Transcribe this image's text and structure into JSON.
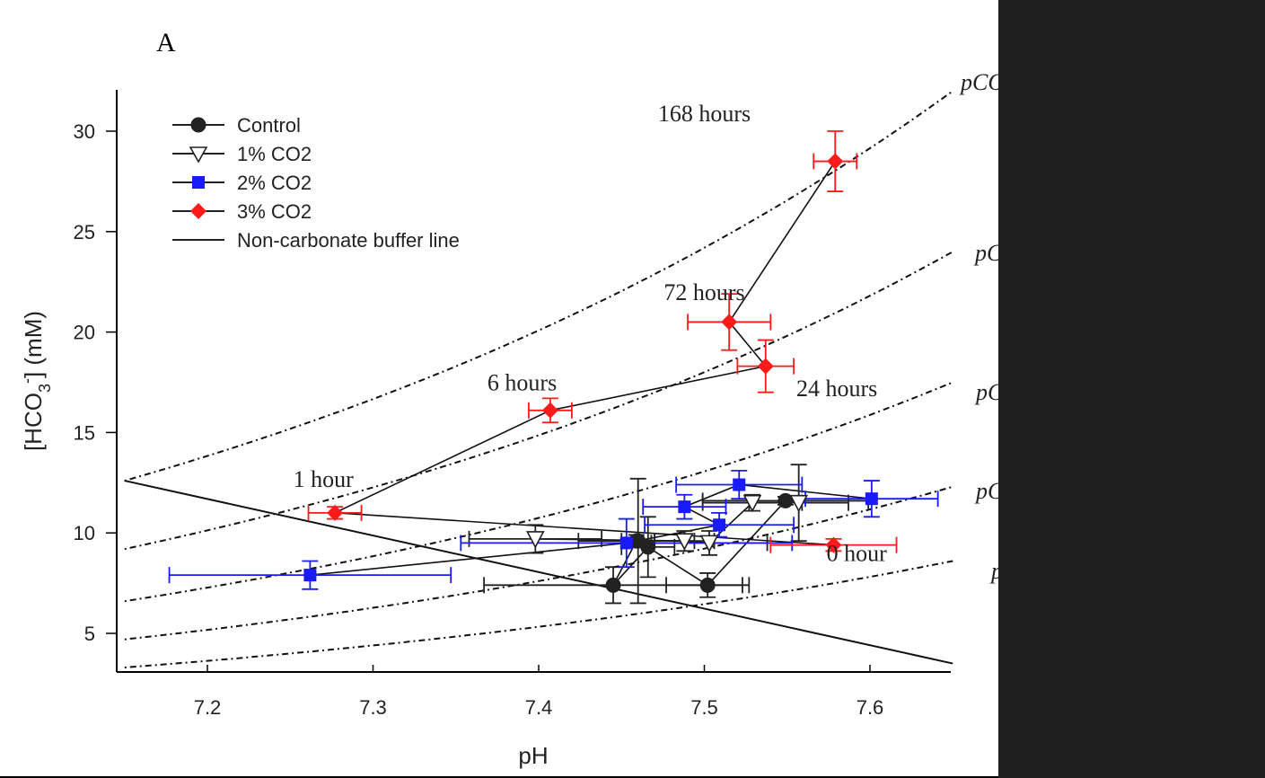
{
  "chart_data": {
    "type": "scatter",
    "panel_label": "A",
    "title": "",
    "xlabel": "pH",
    "ylabel": "[HCO3-] (mM)",
    "xlim": [
      7.15,
      7.65
    ],
    "ylim": [
      3,
      32
    ],
    "x_ticks": [
      "7.2",
      "7.3",
      "7.4",
      "7.5",
      "7.6"
    ],
    "y_ticks": [
      "5",
      "10",
      "15",
      "20",
      "25",
      "30"
    ],
    "x_tick_values": [
      7.2,
      7.3,
      7.4,
      7.5,
      7.6
    ],
    "y_tick_values": [
      5,
      10,
      15,
      20,
      25,
      30
    ],
    "grid": false,
    "legend_position": "top-left",
    "legend": {
      "control": "Control",
      "co2_1": "1% CO2",
      "co2_2": "2% CO2",
      "co2_3": "3% CO2",
      "buffer": "Non-carbonate buffer line"
    },
    "series": [
      {
        "name": "Control",
        "marker": "circle",
        "color": "#222222",
        "error_color": "#222222",
        "points": [
          {
            "x": 7.459,
            "y": 9.6,
            "xerr": 0.035,
            "yerr": 0.3
          },
          {
            "x": 7.445,
            "y": 7.4,
            "xerr": 0.078,
            "yerr": 0.9
          },
          {
            "x": 7.466,
            "y": 9.3,
            "xerr": 0.016,
            "yerr": 1.5
          },
          {
            "x": 7.46,
            "y": 9.6,
            "xerr": 0.01,
            "yerr": 3.1
          },
          {
            "x": 7.502,
            "y": 7.4,
            "xerr": 0.025,
            "yerr": 0.6
          },
          {
            "x": 7.549,
            "y": 11.6,
            "xerr": 0.05,
            "yerr": 0.2
          }
        ]
      },
      {
        "name": "1% CO2",
        "marker": "triangle-down",
        "color": "#ffffff",
        "error_color": "#222222",
        "points": [
          {
            "x": 7.398,
            "y": 9.7,
            "xerr": 0.04,
            "yerr": 0.7
          },
          {
            "x": 7.488,
            "y": 9.6,
            "xerr": 0.018,
            "yerr": 0.5
          },
          {
            "x": 7.503,
            "y": 9.5,
            "xerr": 0.035,
            "yerr": 0.6
          },
          {
            "x": 7.529,
            "y": 11.5,
            "xerr": 0.03,
            "yerr": 0.4
          },
          {
            "x": 7.557,
            "y": 11.5,
            "xerr": 0.03,
            "yerr": 1.9
          }
        ]
      },
      {
        "name": "2% CO2",
        "marker": "square",
        "color": "#1a1aff",
        "error_color": "#1a1aff",
        "points": [
          {
            "x": 7.262,
            "y": 7.9,
            "xerr": 0.085,
            "yerr": 0.7
          },
          {
            "x": 7.453,
            "y": 9.5,
            "xerr": 0.1,
            "yerr": 1.2
          },
          {
            "x": 7.509,
            "y": 10.4,
            "xerr": 0.045,
            "yerr": 0.6
          },
          {
            "x": 7.488,
            "y": 11.3,
            "xerr": 0.025,
            "yerr": 0.6
          },
          {
            "x": 7.521,
            "y": 12.4,
            "xerr": 0.038,
            "yerr": 0.7
          },
          {
            "x": 7.601,
            "y": 11.7,
            "xerr": 0.04,
            "yerr": 0.9
          }
        ]
      },
      {
        "name": "3% CO2",
        "marker": "diamond",
        "color": "#ff1a1a",
        "error_color": "#ff1a1a",
        "points": [
          {
            "x": 7.578,
            "y": 9.4,
            "xerr": 0.038,
            "yerr": 0.3
          },
          {
            "x": 7.277,
            "y": 11.0,
            "xerr": 0.016,
            "yerr": 0.3
          },
          {
            "x": 7.407,
            "y": 16.1,
            "xerr": 0.013,
            "yerr": 0.6
          },
          {
            "x": 7.537,
            "y": 18.3,
            "xerr": 0.017,
            "yerr": 1.3
          },
          {
            "x": 7.515,
            "y": 20.5,
            "xerr": 0.025,
            "yerr": 1.4
          },
          {
            "x": 7.579,
            "y": 28.5,
            "xerr": 0.013,
            "yerr": 1.5
          }
        ]
      }
    ],
    "buffer_line": {
      "name": "Non-carbonate buffer line",
      "x": [
        7.15,
        7.65
      ],
      "y": [
        12.6,
        3.5
      ]
    },
    "isopleths": [
      {
        "label": "pCO",
        "x": [
          7.15,
          7.65
        ],
        "y": [
          12.6,
          32.0
        ]
      },
      {
        "label": "pC",
        "x": [
          7.15,
          7.65
        ],
        "y": [
          9.2,
          24.0
        ]
      },
      {
        "label": "pC",
        "x": [
          7.15,
          7.65
        ],
        "y": [
          6.6,
          17.5
        ]
      },
      {
        "label": "pC",
        "x": [
          7.15,
          7.65
        ],
        "y": [
          4.7,
          12.3
        ]
      },
      {
        "label": "p",
        "x": [
          7.15,
          7.65
        ],
        "y": [
          3.3,
          8.6
        ]
      }
    ],
    "time_labels": [
      {
        "text": "168 hours",
        "x": 7.5,
        "y": 30.5
      },
      {
        "text": "72 hours",
        "x": 7.5,
        "y": 21.6
      },
      {
        "text": "6 hours",
        "x": 7.39,
        "y": 17.1
      },
      {
        "text": "24 hours",
        "x": 7.58,
        "y": 16.8
      },
      {
        "text": "1 hour",
        "x": 7.27,
        "y": 12.3
      },
      {
        "text": "0 hour",
        "x": 7.592,
        "y": 8.6
      }
    ]
  }
}
